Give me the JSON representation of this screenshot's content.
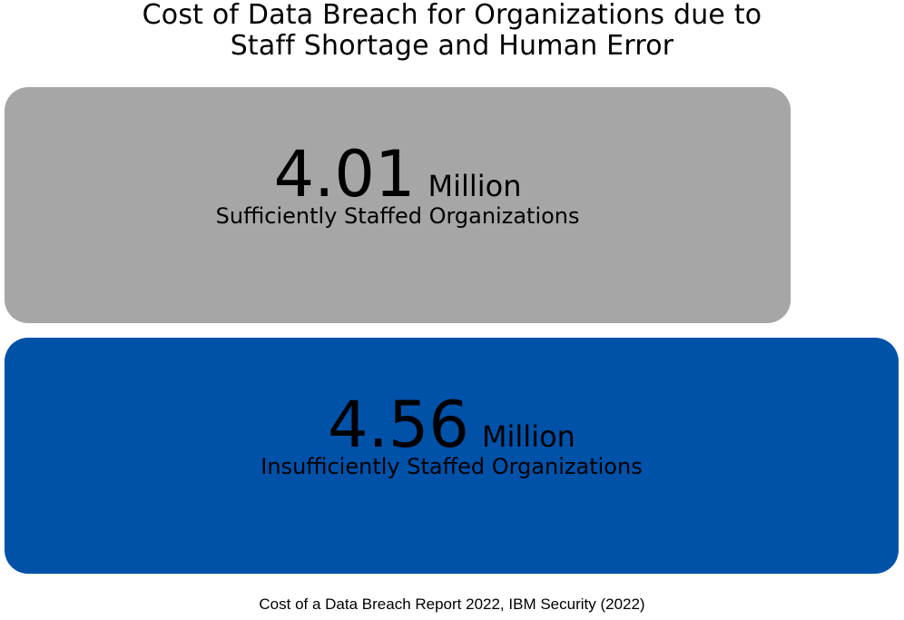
{
  "title": {
    "line1": "Cost of Data Breach for Organizations  due to",
    "line2": "Staff Shortage and Human Error"
  },
  "source": "Cost of a Data Breach Report 2022, IBM Security (2022)",
  "colors": {
    "sufficient": "#a6a6a6",
    "insufficient": "#0051a8",
    "text": "#000000"
  },
  "chart_data": {
    "type": "bar",
    "orientation": "horizontal",
    "title": "Cost of Data Breach for Organizations  due to Staff Shortage and Human Error",
    "categories": [
      "Sufficiently Staffed Organizations",
      "Insufficiently Staffed Organizations"
    ],
    "values": [
      4.01,
      4.56
    ],
    "value_labels": [
      "4.01",
      "4.56"
    ],
    "unit": "Million",
    "xlabel": "",
    "ylabel": "",
    "grid": false,
    "legend": "none"
  }
}
